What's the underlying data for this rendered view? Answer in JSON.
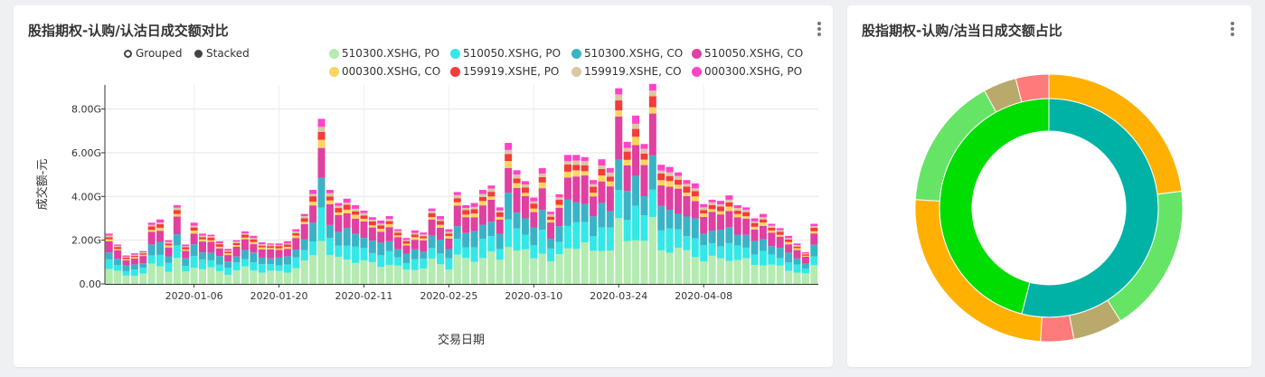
{
  "left_panel": {
    "title": "股指期权-认购/认沽日成交额对比",
    "toggles": {
      "grouped": "Grouped",
      "stacked": "Stacked"
    }
  },
  "right_panel": {
    "title": "股指期权-认购/沽当日成交额占比"
  },
  "chart_data": [
    {
      "type": "bar",
      "stacked": true,
      "xlabel": "交易日期",
      "ylabel": "成交额-元",
      "ylim": [
        0,
        9.1
      ],
      "y_ticks": [
        "0.00",
        "2.00G",
        "4.00G",
        "6.00G",
        "8.00G"
      ],
      "y_tick_values": [
        0,
        2,
        4,
        6,
        8
      ],
      "x_tick_labels": [
        "2020-01-06",
        "2020-01-20",
        "2020-02-11",
        "2020-02-25",
        "2020-03-10",
        "2020-03-24",
        "2020-04-08"
      ],
      "x_tick_index": [
        10,
        20,
        30,
        40,
        50,
        60,
        70
      ],
      "grid": true,
      "legend_position": "top-right",
      "totals": [
        2.3,
        1.8,
        1.3,
        1.4,
        1.5,
        2.8,
        2.95,
        2.0,
        3.6,
        1.8,
        2.8,
        2.3,
        2.25,
        1.95,
        1.6,
        2.0,
        2.4,
        2.2,
        1.9,
        1.85,
        1.85,
        1.95,
        2.5,
        3.2,
        4.3,
        7.55,
        4.3,
        3.7,
        3.9,
        3.6,
        3.35,
        3.05,
        2.9,
        3.1,
        2.5,
        2.1,
        2.45,
        2.35,
        3.45,
        3.1,
        2.5,
        4.2,
        3.6,
        3.7,
        4.3,
        4.5,
        3.5,
        6.45,
        5.2,
        4.7,
        3.95,
        5.3,
        3.3,
        4.1,
        5.9,
        5.9,
        5.8,
        4.75,
        5.7,
        5.3,
        8.95,
        6.5,
        7.7,
        6.4,
        9.15,
        5.45,
        5.35,
        5.1,
        4.75,
        4.6,
        3.65,
        3.85,
        3.8,
        4.05,
        3.6,
        3.5,
        3.0,
        3.2,
        2.75,
        2.55,
        2.2,
        1.85,
        1.45,
        2.75
      ],
      "series": [
        {
          "name": "510300.XSHG, PO",
          "color": "#b3ebb0",
          "share": 0.3
        },
        {
          "name": "510050.XSHG, PO",
          "color": "#33e8e6",
          "share": 0.17
        },
        {
          "name": "510300.XSHG, CO",
          "color": "#3bb3c6",
          "share": 0.17
        },
        {
          "name": "510050.XSHG, CO",
          "color": "#e040a0",
          "share": 0.2
        },
        {
          "name": "000300.XSHG, CO",
          "color": "#fbd55f",
          "share": 0.04
        },
        {
          "name": "159919.XSHE, PO",
          "color": "#f53b3b",
          "share": 0.05
        },
        {
          "name": "159919.XSHE, CO",
          "color": "#d9c8a3",
          "share": 0.03
        },
        {
          "name": "000300.XSHG, PO",
          "color": "#ff44c8",
          "share": 0.04
        }
      ]
    },
    {
      "type": "pie",
      "variant": "donut-nested",
      "inner": [
        {
          "value": 0.54,
          "color": "#00b2a6"
        },
        {
          "value": 0.46,
          "color": "#00dd00"
        }
      ],
      "outer": [
        {
          "value": 0.23,
          "color": "#ffb000"
        },
        {
          "value": 0.18,
          "color": "#66e466"
        },
        {
          "value": 0.06,
          "color": "#b9aa6b"
        },
        {
          "value": 0.04,
          "color": "#ff7a7a"
        },
        {
          "value": 0.25,
          "color": "#ffb000"
        },
        {
          "value": 0.16,
          "color": "#66e466"
        },
        {
          "value": 0.04,
          "color": "#b9aa6b"
        },
        {
          "value": 0.04,
          "color": "#ff7a7a"
        }
      ]
    }
  ]
}
